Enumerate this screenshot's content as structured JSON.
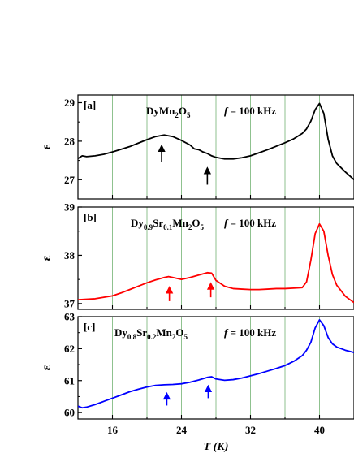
{
  "colors": {
    "grid": "#8fc28f",
    "axis": "#000000"
  },
  "chart_data": [
    {
      "type": "line",
      "panel_label": "[a]",
      "formula": [
        {
          "t": "DyMn",
          "sub": false
        },
        {
          "t": "2",
          "sub": true
        },
        {
          "t": "O",
          "sub": false
        },
        {
          "t": "5",
          "sub": true
        }
      ],
      "freq_symbol": "f",
      "freq_text": " = 100 kHz",
      "ylabel": "ε",
      "xlim": [
        12,
        44
      ],
      "ylim": [
        26.5,
        29.2
      ],
      "yticks": [
        27,
        28,
        29
      ],
      "ytick_labels": [
        "27",
        "28",
        "29"
      ],
      "color": "#000000",
      "series": [
        {
          "x": [
            12,
            12.5,
            13,
            14,
            15,
            16,
            17,
            18,
            19,
            20,
            21,
            22,
            23,
            24,
            25,
            25.5,
            26,
            26.5,
            27,
            27.5,
            28,
            29,
            30,
            31,
            32,
            33,
            34,
            35,
            36,
            37,
            38,
            38.5,
            39,
            39.5,
            40,
            40.5,
            41,
            41.5,
            42,
            43,
            44
          ],
          "y": [
            27.55,
            27.62,
            27.6,
            27.62,
            27.66,
            27.72,
            27.79,
            27.86,
            27.95,
            28.04,
            28.12,
            28.16,
            28.12,
            28.02,
            27.9,
            27.8,
            27.78,
            27.72,
            27.68,
            27.62,
            27.58,
            27.54,
            27.54,
            27.57,
            27.62,
            27.7,
            27.78,
            27.87,
            27.96,
            28.06,
            28.2,
            28.32,
            28.52,
            28.82,
            28.98,
            28.72,
            28.05,
            27.62,
            27.42,
            27.2,
            27.0
          ]
        }
      ],
      "arrows": [
        {
          "x": 21.7,
          "y_from": 27.45,
          "y_to": 27.9
        },
        {
          "x": 27.0,
          "y_from": 26.87,
          "y_to": 27.32
        }
      ]
    },
    {
      "type": "line",
      "panel_label": "[b]",
      "formula": [
        {
          "t": "Dy",
          "sub": false
        },
        {
          "t": "0.9",
          "sub": true
        },
        {
          "t": "Sr",
          "sub": false
        },
        {
          "t": "0.1",
          "sub": true
        },
        {
          "t": "Mn",
          "sub": false
        },
        {
          "t": "2",
          "sub": true
        },
        {
          "t": "O",
          "sub": false
        },
        {
          "t": "5",
          "sub": true
        }
      ],
      "freq_symbol": "f",
      "freq_text": " = 100 kHz",
      "ylabel": "ε",
      "xlim": [
        12,
        44
      ],
      "ylim": [
        36.88,
        39.0
      ],
      "yticks": [
        37,
        38,
        39
      ],
      "ytick_labels": [
        "37",
        "38",
        "39"
      ],
      "color": "#ff0000",
      "series": [
        {
          "x": [
            12,
            13,
            14,
            15,
            16,
            17,
            18,
            19,
            20,
            21,
            22,
            22.5,
            23,
            24,
            25,
            26,
            27,
            27.5,
            28,
            29,
            30,
            31,
            32,
            33,
            34,
            35,
            36,
            37,
            38,
            38.5,
            39,
            39.5,
            40,
            40.5,
            41,
            41.5,
            42,
            43,
            44
          ],
          "y": [
            37.08,
            37.09,
            37.1,
            37.13,
            37.16,
            37.22,
            37.29,
            37.36,
            37.43,
            37.49,
            37.54,
            37.56,
            37.54,
            37.5,
            37.54,
            37.59,
            37.64,
            37.63,
            37.48,
            37.36,
            37.31,
            37.3,
            37.29,
            37.29,
            37.3,
            37.31,
            37.31,
            37.32,
            37.33,
            37.45,
            37.9,
            38.45,
            38.65,
            38.5,
            38.0,
            37.6,
            37.38,
            37.15,
            37.02
          ]
        }
      ],
      "arrows": [
        {
          "x": 22.6,
          "y_from": 37.05,
          "y_to": 37.35
        },
        {
          "x": 27.4,
          "y_from": 37.13,
          "y_to": 37.43
        }
      ]
    },
    {
      "type": "line",
      "panel_label": "[c]",
      "formula": [
        {
          "t": "Dy",
          "sub": false
        },
        {
          "t": "0.8",
          "sub": true
        },
        {
          "t": "Sr",
          "sub": false
        },
        {
          "t": "0.2",
          "sub": true
        },
        {
          "t": "Mn",
          "sub": false
        },
        {
          "t": "2",
          "sub": true
        },
        {
          "t": "O",
          "sub": false
        },
        {
          "t": "5",
          "sub": true
        }
      ],
      "freq_symbol": "f",
      "freq_text": " = 100 kHz",
      "ylabel": "ε",
      "xlabel": "T",
      "xlabel_unit": " (K)",
      "xlim": [
        12,
        44
      ],
      "ylim": [
        59.8,
        63.0
      ],
      "yticks": [
        60,
        61,
        62,
        63
      ],
      "ytick_labels": [
        "60",
        "61",
        "62",
        "63"
      ],
      "xticks": [
        16,
        24,
        32,
        40
      ],
      "xtick_labels": [
        "16",
        "24",
        "32",
        "40"
      ],
      "color": "#0000ff",
      "series": [
        {
          "x": [
            12,
            12.5,
            13,
            14,
            15,
            16,
            17,
            18,
            19,
            20,
            21,
            22,
            23,
            24,
            25,
            26,
            27,
            27.5,
            28,
            29,
            30,
            31,
            32,
            33,
            34,
            35,
            36,
            37,
            38,
            38.5,
            39,
            39.5,
            40,
            40.5,
            41,
            41.5,
            42,
            43,
            44
          ],
          "y": [
            60.2,
            60.15,
            60.17,
            60.25,
            60.35,
            60.45,
            60.55,
            60.65,
            60.73,
            60.8,
            60.85,
            60.87,
            60.88,
            60.9,
            60.95,
            61.02,
            61.1,
            61.12,
            61.05,
            61.01,
            61.03,
            61.08,
            61.15,
            61.22,
            61.3,
            61.38,
            61.47,
            61.6,
            61.78,
            61.95,
            62.2,
            62.65,
            62.9,
            62.72,
            62.35,
            62.15,
            62.05,
            61.95,
            61.88
          ]
        }
      ],
      "arrows": [
        {
          "x": 22.3,
          "y_from": 60.22,
          "y_to": 60.62
        },
        {
          "x": 27.1,
          "y_from": 60.45,
          "y_to": 60.85
        }
      ]
    }
  ]
}
